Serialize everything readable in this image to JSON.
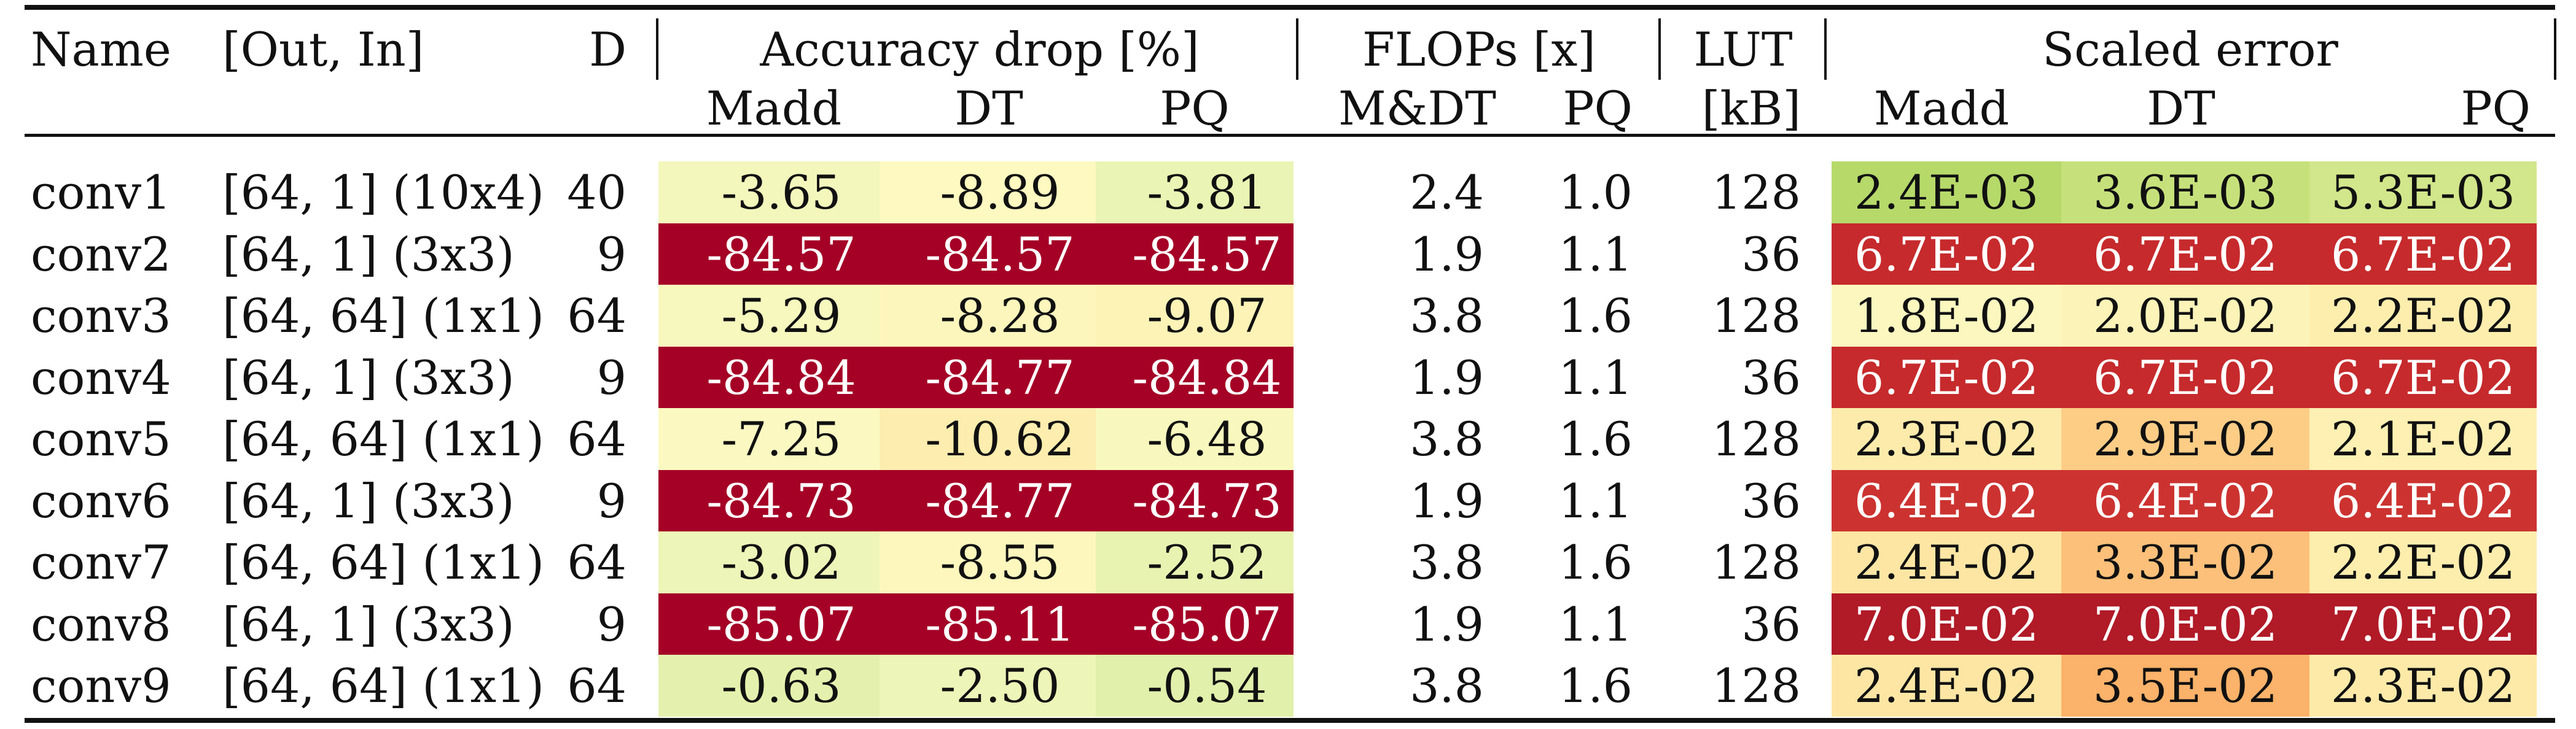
{
  "header": {
    "name": "Name",
    "out_in": "[Out, In]",
    "d": "D",
    "accuracy_drop": "Accuracy drop [%]",
    "flops": "FLOPs [x]",
    "lut": "LUT",
    "lut_unit": "[kB]",
    "scaled_error": "Scaled error",
    "sub": {
      "acc_madd": "Madd",
      "acc_dt": "DT",
      "acc_pq": "PQ",
      "flops_mdt": "M&DT",
      "flops_pq": "PQ",
      "err_madd": "Madd",
      "err_dt": "DT",
      "err_pq": "PQ"
    }
  },
  "rows": [
    {
      "name": "conv1",
      "shape": "[64, 1] (10x4)",
      "d": "40",
      "acc": [
        "-3.65",
        "-8.89",
        "-3.81"
      ],
      "acc_colors": [
        "#f3f7bc",
        "#fdf9c0",
        "#eaf4b4"
      ],
      "flops_mdt": "2.4",
      "flops_pq": "1.0",
      "lut": "128",
      "err": [
        "2.4E-03",
        "3.6E-03",
        "5.3E-03"
      ],
      "err_colors": [
        "#b6d96a",
        "#c6e17b",
        "#d2e68b"
      ]
    },
    {
      "name": "conv2",
      "shape": "[64, 1] (3x3)",
      "d": "9",
      "acc": [
        "-84.57",
        "-84.57",
        "-84.57"
      ],
      "acc_colors": [
        "#a50026",
        "#a50026",
        "#a50026"
      ],
      "flops_mdt": "1.9",
      "flops_pq": "1.1",
      "lut": "36",
      "err": [
        "6.7E-02",
        "6.7E-02",
        "6.7E-02"
      ],
      "err_colors": [
        "#c62a2c",
        "#c62a2c",
        "#c62a2c"
      ]
    },
    {
      "name": "conv3",
      "shape": "[64, 64] (1x1)",
      "d": "64",
      "acc": [
        "-5.29",
        "-8.28",
        "-9.07"
      ],
      "acc_colors": [
        "#f7f8be",
        "#fdf6bc",
        "#fdf3b7"
      ],
      "flops_mdt": "3.8",
      "flops_pq": "1.6",
      "lut": "128",
      "err": [
        "1.8E-02",
        "2.0E-02",
        "2.2E-02"
      ],
      "err_colors": [
        "#fbf7bf",
        "#fcf3b8",
        "#fdeeae"
      ]
    },
    {
      "name": "conv4",
      "shape": "[64, 1] (3x3)",
      "d": "9",
      "acc": [
        "-84.84",
        "-84.77",
        "-84.84"
      ],
      "acc_colors": [
        "#a50026",
        "#a50026",
        "#a50026"
      ],
      "flops_mdt": "1.9",
      "flops_pq": "1.1",
      "lut": "36",
      "err": [
        "6.7E-02",
        "6.7E-02",
        "6.7E-02"
      ],
      "err_colors": [
        "#c62a2c",
        "#c62a2c",
        "#c62a2c"
      ]
    },
    {
      "name": "conv5",
      "shape": "[64, 64] (1x1)",
      "d": "64",
      "acc": [
        "-7.25",
        "-10.62",
        "-6.48"
      ],
      "acc_colors": [
        "#fbf9c1",
        "#fdedae",
        "#f8f8be"
      ],
      "flops_mdt": "3.8",
      "flops_pq": "1.6",
      "lut": "128",
      "err": [
        "2.3E-02",
        "2.9E-02",
        "2.1E-02"
      ],
      "err_colors": [
        "#fdebac",
        "#fdcd86",
        "#fdf0b2"
      ]
    },
    {
      "name": "conv6",
      "shape": "[64, 1] (3x3)",
      "d": "9",
      "acc": [
        "-84.73",
        "-84.77",
        "-84.73"
      ],
      "acc_colors": [
        "#a50026",
        "#a50026",
        "#a50026"
      ],
      "flops_mdt": "1.9",
      "flops_pq": "1.1",
      "lut": "36",
      "err": [
        "6.4E-02",
        "6.4E-02",
        "6.4E-02"
      ],
      "err_colors": [
        "#cc3330",
        "#cc3330",
        "#cc3330"
      ]
    },
    {
      "name": "conv7",
      "shape": "[64, 64] (1x1)",
      "d": "64",
      "acc": [
        "-3.02",
        "-8.55",
        "-2.52"
      ],
      "acc_colors": [
        "#eef5b8",
        "#fdf7be",
        "#e8f3b2"
      ],
      "flops_mdt": "3.8",
      "flops_pq": "1.6",
      "lut": "128",
      "err": [
        "2.4E-02",
        "3.3E-02",
        "2.2E-02"
      ],
      "err_colors": [
        "#fde6a4",
        "#fcc07a",
        "#fdeeae"
      ]
    },
    {
      "name": "conv8",
      "shape": "[64, 1] (3x3)",
      "d": "9",
      "acc": [
        "-85.07",
        "-85.11",
        "-85.07"
      ],
      "acc_colors": [
        "#a50026",
        "#a50026",
        "#a50026"
      ],
      "flops_mdt": "1.9",
      "flops_pq": "1.1",
      "lut": "36",
      "err": [
        "7.0E-02",
        "7.0E-02",
        "7.0E-02"
      ],
      "err_colors": [
        "#b11a27",
        "#b11a27",
        "#b11a27"
      ]
    },
    {
      "name": "conv9",
      "shape": "[64, 64] (1x1)",
      "d": "64",
      "acc": [
        "-0.63",
        "-2.50",
        "-0.54"
      ],
      "acc_colors": [
        "#e4f1ae",
        "#eef5b8",
        "#e1f0ab"
      ],
      "flops_mdt": "3.8",
      "flops_pq": "1.6",
      "lut": "128",
      "err": [
        "2.4E-02",
        "3.5E-02",
        "2.3E-02"
      ],
      "err_colors": [
        "#fde6a4",
        "#fbb26a",
        "#fdeaa9"
      ]
    }
  ]
}
